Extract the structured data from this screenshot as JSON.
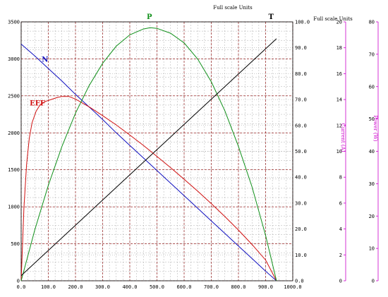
{
  "header": {
    "fullscale_units_center": "Full scale Units",
    "fullscale_units_right": "Full scale Units"
  },
  "axes": {
    "current_label": "Current (A)",
    "power_label": "Power (W)"
  },
  "colors": {
    "N": "#1010c0",
    "EFF": "#d01010",
    "P": "#10901a",
    "T": "#000000",
    "grid_major": "#8b0000",
    "grid_minor": "#9a9a9a",
    "current_axis": "#cc00cc",
    "power_axis": "#cc00cc"
  },
  "chart_data": {
    "type": "line",
    "x": {
      "range": [
        0,
        1000
      ],
      "ticks": [
        0,
        100,
        200,
        300,
        400,
        500,
        600,
        700,
        800,
        900,
        1000
      ],
      "tick_labels": [
        "0.0",
        "100.0",
        "200.0",
        "300.0",
        "400.0",
        "500.0",
        "600.0",
        "700.0",
        "800.0",
        "900.0",
        "1000.0"
      ]
    },
    "y_left": {
      "range": [
        0,
        3500
      ],
      "ticks": [
        0,
        500,
        1000,
        1500,
        2000,
        2500,
        3000,
        3500
      ],
      "tick_labels": [
        "0",
        "500",
        "1000",
        "1500",
        "2000",
        "2500",
        "3000",
        "3500"
      ]
    },
    "y_percent": {
      "range": [
        0,
        100
      ],
      "ticks": [
        0,
        10,
        20,
        30,
        40,
        50,
        60,
        70,
        80,
        90,
        100
      ],
      "tick_labels": [
        "0.0",
        "10.0",
        "20.0",
        "30.0",
        "40.0",
        "50.0",
        "60.0",
        "70.0",
        "80.0",
        "90.0",
        "100.0"
      ]
    },
    "y_current": {
      "label": "Current (A)",
      "range": [
        0,
        20
      ],
      "ticks": [
        0,
        2,
        4,
        6,
        8,
        10,
        12,
        14,
        16,
        18,
        20
      ],
      "tick_labels": [
        "0",
        "2",
        "4",
        "6",
        "8",
        "10",
        "12",
        "14",
        "16",
        "18",
        "20"
      ]
    },
    "y_power": {
      "label": "Power (W)",
      "range": [
        0,
        80
      ],
      "ticks": [
        0,
        10,
        20,
        30,
        40,
        50,
        60,
        70,
        80
      ],
      "tick_labels": [
        "0",
        "10",
        "20",
        "30",
        "40",
        "50",
        "60",
        "70",
        "80"
      ]
    },
    "grid": true,
    "series": [
      {
        "name": "N",
        "axis": "y_left",
        "points": [
          [
            0,
            3200
          ],
          [
            50,
            3040
          ],
          [
            100,
            2870
          ],
          [
            150,
            2700
          ],
          [
            200,
            2520
          ],
          [
            250,
            2350
          ],
          [
            300,
            2180
          ],
          [
            350,
            2000
          ],
          [
            400,
            1830
          ],
          [
            450,
            1660
          ],
          [
            500,
            1490
          ],
          [
            550,
            1320
          ],
          [
            600,
            1150
          ],
          [
            650,
            980
          ],
          [
            700,
            810
          ],
          [
            750,
            640
          ],
          [
            800,
            470
          ],
          [
            850,
            300
          ],
          [
            900,
            130
          ],
          [
            940,
            0
          ]
        ]
      },
      {
        "name": "EFF",
        "axis": "y_percent",
        "points": [
          [
            0,
            0
          ],
          [
            10,
            28
          ],
          [
            20,
            45
          ],
          [
            30,
            55
          ],
          [
            40,
            61
          ],
          [
            55,
            65.5
          ],
          [
            70,
            68
          ],
          [
            90,
            69.3
          ],
          [
            110,
            70
          ],
          [
            130,
            70.7
          ],
          [
            150,
            71.2
          ],
          [
            175,
            71.2
          ],
          [
            200,
            70.2
          ],
          [
            250,
            67.2
          ],
          [
            300,
            63.8
          ],
          [
            350,
            60.2
          ],
          [
            400,
            56.3
          ],
          [
            450,
            52.3
          ],
          [
            500,
            48
          ],
          [
            550,
            43.7
          ],
          [
            600,
            39.2
          ],
          [
            650,
            34.6
          ],
          [
            700,
            29.8
          ],
          [
            750,
            24.8
          ],
          [
            800,
            19.6
          ],
          [
            850,
            14
          ],
          [
            900,
            8
          ],
          [
            940,
            0
          ]
        ]
      },
      {
        "name": "P",
        "axis": "y_power",
        "points": [
          [
            0,
            0
          ],
          [
            50,
            15.7
          ],
          [
            100,
            29.5
          ],
          [
            150,
            41.5
          ],
          [
            200,
            51.8
          ],
          [
            250,
            60.3
          ],
          [
            300,
            67.2
          ],
          [
            350,
            72.5
          ],
          [
            400,
            76.0
          ],
          [
            450,
            77.8
          ],
          [
            475,
            78.2
          ],
          [
            500,
            78.0
          ],
          [
            550,
            76.5
          ],
          [
            600,
            73.5
          ],
          [
            650,
            68.5
          ],
          [
            700,
            61.5
          ],
          [
            750,
            52.5
          ],
          [
            800,
            41.5
          ],
          [
            850,
            29
          ],
          [
            900,
            14
          ],
          [
            940,
            0
          ]
        ]
      },
      {
        "name": "T",
        "axis": "y_percent",
        "points": [
          [
            0,
            2
          ],
          [
            940,
            93.5
          ]
        ]
      }
    ],
    "labels": [
      {
        "text": "N",
        "x": 88,
        "y_left": 2960
      },
      {
        "text": "EFF",
        "x": 60,
        "y_left": 2370
      },
      {
        "text": "P",
        "x": 472,
        "y_left": 3540
      },
      {
        "text": "T",
        "x": 920,
        "y_left": 3540
      }
    ]
  }
}
